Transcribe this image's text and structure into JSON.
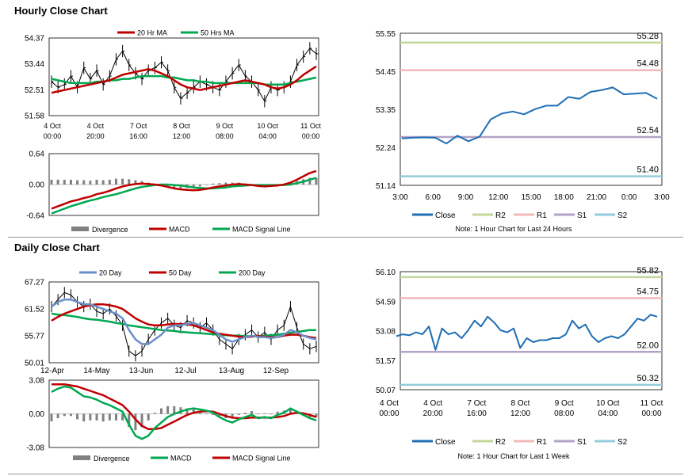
{
  "sections": {
    "hourly_title": "Hourly Close Chart",
    "daily_title": "Daily Close Chart"
  },
  "colors": {
    "ma20": "#c00000",
    "ma50": "#00a850",
    "price": "#000000",
    "day20": "#6a8fc8",
    "day50": "#c00000",
    "day200": "#00a850",
    "div": "#808080",
    "macd": "#c00000",
    "signal": "#00a850",
    "close": "#1f6eb4",
    "r2": "#c4d79b",
    "r1": "#f2b8b8",
    "s1": "#b3a2c7",
    "s2": "#92cddc"
  },
  "chart_data": [
    {
      "id": "hourly_price",
      "type": "line",
      "legend": [
        "20 Hr MA",
        "50 Hrs MA"
      ],
      "y_ticks": [
        "54.37",
        "53.44",
        "52.51",
        "51.58"
      ],
      "ylim": [
        51.58,
        54.37
      ],
      "x_ticks": [
        [
          "4 Oct",
          "00:00"
        ],
        [
          "4 Oct",
          "20:00"
        ],
        [
          "7 Oct",
          "16:00"
        ],
        [
          "8 Oct",
          "12:00"
        ],
        [
          "9 Oct",
          "08:00"
        ],
        [
          "10 Oct",
          "04:00"
        ],
        [
          "11 Oct",
          "00:00"
        ]
      ],
      "price": [
        52.8,
        52.6,
        52.7,
        53.0,
        52.6,
        53.3,
        52.9,
        53.2,
        52.7,
        53.0,
        53.6,
        53.9,
        53.4,
        53.1,
        52.9,
        53.2,
        53.3,
        53.5,
        53.2,
        52.6,
        52.2,
        52.4,
        52.6,
        52.8,
        52.7,
        52.6,
        52.5,
        52.8,
        53.1,
        53.4,
        53.0,
        52.8,
        52.5,
        52.1,
        52.6,
        52.5,
        52.6,
        52.8,
        53.4,
        53.7,
        54.0,
        53.8
      ],
      "ma20": [
        52.4,
        52.45,
        52.5,
        52.55,
        52.6,
        52.65,
        52.7,
        52.75,
        52.8,
        52.85,
        52.95,
        53.05,
        53.1,
        53.15,
        53.2,
        53.25,
        53.2,
        53.1,
        53.0,
        52.85,
        52.7,
        52.6,
        52.55,
        52.5,
        52.55,
        52.6,
        52.65,
        52.7,
        52.75,
        52.8,
        52.85,
        52.8,
        52.75,
        52.7,
        52.6,
        52.55,
        52.6,
        52.7,
        52.85,
        53.05,
        53.2,
        53.35
      ],
      "ma50": [
        52.9,
        52.85,
        52.8,
        52.75,
        52.75,
        52.75,
        52.75,
        52.8,
        52.8,
        52.85,
        52.85,
        52.9,
        52.9,
        52.95,
        53.0,
        53.0,
        53.0,
        53.0,
        52.95,
        52.95,
        52.9,
        52.85,
        52.85,
        52.8,
        52.8,
        52.75,
        52.75,
        52.75,
        52.75,
        52.75,
        52.75,
        52.75,
        52.75,
        52.7,
        52.7,
        52.7,
        52.7,
        52.75,
        52.8,
        52.85,
        52.9,
        52.95
      ]
    },
    {
      "id": "hourly_macd",
      "type": "line",
      "legend": [
        "Divergence",
        "MACD",
        "MACD Signal Line"
      ],
      "y_ticks": [
        "0.64",
        "0.00",
        "-0.64"
      ],
      "ylim": [
        -0.64,
        0.64
      ],
      "macd": [
        -0.5,
        -0.45,
        -0.4,
        -0.35,
        -0.32,
        -0.28,
        -0.25,
        -0.2,
        -0.17,
        -0.13,
        -0.08,
        -0.04,
        -0.01,
        0.01,
        0.02,
        0.01,
        0.0,
        -0.02,
        -0.05,
        -0.08,
        -0.1,
        -0.11,
        -0.12,
        -0.11,
        -0.09,
        -0.06,
        -0.04,
        -0.02,
        0.0,
        0.01,
        0.0,
        -0.01,
        -0.03,
        -0.04,
        -0.03,
        -0.02,
        0.0,
        0.04,
        0.1,
        0.17,
        0.24,
        0.28
      ],
      "signal": [
        -0.6,
        -0.55,
        -0.5,
        -0.45,
        -0.41,
        -0.37,
        -0.33,
        -0.3,
        -0.26,
        -0.23,
        -0.2,
        -0.16,
        -0.12,
        -0.08,
        -0.05,
        -0.03,
        -0.01,
        0.0,
        0.0,
        -0.01,
        -0.02,
        -0.04,
        -0.06,
        -0.07,
        -0.08,
        -0.08,
        -0.07,
        -0.06,
        -0.04,
        -0.03,
        -0.02,
        -0.01,
        -0.01,
        -0.01,
        -0.01,
        -0.01,
        -0.01,
        0.0,
        0.03,
        0.06,
        0.1,
        0.14
      ],
      "divergence": [
        0.1,
        0.1,
        0.1,
        0.1,
        0.09,
        0.09,
        0.08,
        0.1,
        0.09,
        0.1,
        0.12,
        0.12,
        0.11,
        0.09,
        0.07,
        0.04,
        0.01,
        -0.02,
        -0.05,
        -0.07,
        -0.08,
        -0.07,
        -0.06,
        -0.04,
        -0.01,
        0.02,
        0.03,
        0.04,
        0.04,
        0.04,
        0.02,
        0.0,
        -0.02,
        -0.03,
        -0.02,
        -0.01,
        0.01,
        0.04,
        0.07,
        0.11,
        0.14,
        0.14
      ]
    },
    {
      "id": "hourly_levels",
      "type": "line",
      "ylim": [
        51.14,
        55.55
      ],
      "y_ticks": [
        "55.55",
        "54.45",
        "53.35",
        "52.24",
        "51.14"
      ],
      "x_ticks": [
        "3:00",
        "6:00",
        "9:00",
        "12:00",
        "15:00",
        "18:00",
        "21:00",
        "0:00",
        "3:00"
      ],
      "levels": {
        "R2": 55.28,
        "R1": 54.48,
        "S1": 52.54,
        "S2": 51.4
      },
      "level_labels": {
        "R2": "55.28",
        "R1": "54.48",
        "S1": "52.54",
        "S2": "51.40"
      },
      "close": [
        52.5,
        52.52,
        52.53,
        52.52,
        52.35,
        52.58,
        52.42,
        52.55,
        53.05,
        53.22,
        53.28,
        53.2,
        53.35,
        53.45,
        53.45,
        53.7,
        53.65,
        53.85,
        53.9,
        53.98,
        53.78,
        53.8,
        53.82,
        53.65
      ],
      "legend": [
        "Close",
        "R2",
        "R1",
        "S1",
        "S2"
      ],
      "note": "Note: 1 Hour Chart for Last 24 Hours"
    },
    {
      "id": "daily_price",
      "type": "line",
      "legend": [
        "20 Day",
        "50 Day",
        "200 Day"
      ],
      "y_ticks": [
        "67.27",
        "61.52",
        "55.77",
        "50.01"
      ],
      "ylim": [
        50.01,
        67.27
      ],
      "x_ticks": [
        "12-Apr",
        "14-May",
        "13-Jun",
        "12-Jul",
        "13-Aug",
        "12-Sep"
      ],
      "price": [
        62.0,
        63.5,
        65.0,
        64.5,
        63.0,
        62.0,
        62.5,
        61.0,
        60.5,
        61.5,
        60.0,
        58.0,
        52.5,
        51.5,
        52.5,
        55.0,
        57.0,
        58.5,
        59.5,
        58.0,
        57.5,
        59.0,
        58.5,
        57.5,
        58.5,
        57.0,
        55.0,
        54.0,
        53.0,
        55.0,
        56.0,
        57.0,
        55.5,
        56.5,
        55.0,
        57.0,
        58.0,
        62.0,
        57.5,
        54.0,
        53.0,
        53.5
      ],
      "day20": [
        62.0,
        63.0,
        63.5,
        63.5,
        63.0,
        62.5,
        62.5,
        62.0,
        61.5,
        61.0,
        60.5,
        59.5,
        57.0,
        55.0,
        54.0,
        54.0,
        55.0,
        56.0,
        57.5,
        58.0,
        58.0,
        58.3,
        58.5,
        58.0,
        57.5,
        57.0,
        56.0,
        55.0,
        54.5,
        55.0,
        55.5,
        55.8,
        55.5,
        55.5,
        55.3,
        55.5,
        56.0,
        57.0,
        56.5,
        55.8,
        55.3,
        55.0
      ],
      "day50": [
        59.0,
        59.8,
        60.5,
        61.0,
        61.5,
        62.0,
        62.3,
        62.5,
        62.5,
        62.3,
        62.0,
        61.5,
        60.5,
        59.5,
        58.8,
        58.2,
        58.0,
        58.0,
        58.2,
        58.3,
        58.3,
        58.2,
        58.0,
        57.5,
        57.0,
        56.5,
        56.2,
        56.0,
        55.8,
        55.6,
        55.5,
        55.6,
        55.7,
        55.6,
        55.5,
        55.5,
        55.8,
        56.0,
        56.0,
        55.8,
        55.5,
        55.3
      ],
      "day200": [
        60.5,
        60.3,
        60.2,
        60.0,
        59.8,
        59.5,
        59.3,
        59.2,
        59.0,
        58.8,
        58.5,
        58.3,
        58.0,
        57.8,
        57.6,
        57.4,
        57.2,
        57.0,
        56.9,
        56.8,
        56.6,
        56.5,
        56.4,
        56.3,
        56.2,
        56.1,
        56.0,
        55.9,
        55.8,
        55.8,
        55.7,
        55.7,
        55.7,
        55.8,
        55.9,
        56.0,
        56.2,
        56.4,
        56.6,
        56.8,
        57.0,
        57.0
      ]
    },
    {
      "id": "daily_macd",
      "type": "line",
      "legend": [
        "Divergence",
        "MACD",
        "MACD Signal Line"
      ],
      "y_ticks": [
        "3.08",
        "0.00",
        "-3.08"
      ],
      "ylim": [
        -3.08,
        3.08
      ],
      "macd": [
        2.0,
        2.3,
        2.5,
        2.4,
        2.0,
        1.6,
        1.5,
        1.3,
        1.0,
        0.8,
        0.5,
        0.2,
        -1.0,
        -2.0,
        -2.3,
        -2.0,
        -1.3,
        -0.8,
        -0.3,
        0.0,
        0.2,
        0.4,
        0.5,
        0.4,
        0.3,
        0.1,
        -0.3,
        -0.6,
        -0.8,
        -0.5,
        -0.3,
        -0.1,
        -0.4,
        -0.3,
        -0.4,
        -0.1,
        0.1,
        0.5,
        0.2,
        -0.1,
        -0.4,
        -0.6
      ],
      "signal": [
        2.7,
        2.7,
        2.7,
        2.6,
        2.5,
        2.3,
        2.1,
        1.9,
        1.7,
        1.4,
        1.1,
        0.8,
        0.2,
        -0.5,
        -1.1,
        -1.4,
        -1.4,
        -1.3,
        -1.0,
        -0.7,
        -0.4,
        -0.1,
        0.1,
        0.2,
        0.25,
        0.2,
        0.0,
        -0.2,
        -0.35,
        -0.4,
        -0.4,
        -0.35,
        -0.35,
        -0.35,
        -0.35,
        -0.3,
        -0.2,
        0.0,
        0.1,
        0.05,
        -0.1,
        -0.3
      ],
      "divergence": [
        -0.7,
        -0.4,
        -0.2,
        -0.2,
        -0.5,
        -0.7,
        -0.6,
        -0.6,
        -0.7,
        -0.6,
        -0.6,
        -0.6,
        -1.2,
        -1.5,
        -1.2,
        -0.6,
        0.1,
        0.5,
        0.7,
        0.7,
        0.6,
        0.5,
        0.4,
        0.2,
        0.05,
        -0.1,
        -0.3,
        -0.4,
        -0.45,
        -0.1,
        0.1,
        0.25,
        -0.05,
        0.05,
        -0.05,
        0.2,
        0.3,
        0.5,
        0.1,
        -0.15,
        -0.3,
        -0.3
      ]
    },
    {
      "id": "daily_levels",
      "type": "line",
      "ylim": [
        50.07,
        56.1
      ],
      "y_ticks": [
        "56.10",
        "54.59",
        "53.08",
        "51.57",
        "50.07"
      ],
      "x_ticks": [
        [
          "4 Oct",
          "00:00"
        ],
        [
          "4 Oct",
          "20:00"
        ],
        [
          "7 Oct",
          "16:00"
        ],
        [
          "8 Oct",
          "12:00"
        ],
        [
          "9 Oct",
          "08:00"
        ],
        [
          "10 Oct",
          "04:00"
        ],
        [
          "11 Oct",
          "00:00"
        ]
      ],
      "levels": {
        "R2": 55.82,
        "R1": 54.75,
        "S1": 52.0,
        "S2": 50.32
      },
      "level_labels": {
        "R2": "55.82",
        "R1": "54.75",
        "S1": "52.00",
        "S2": "50.32"
      },
      "close": [
        52.8,
        52.9,
        52.85,
        53.0,
        52.9,
        53.3,
        52.1,
        53.2,
        52.9,
        53.0,
        52.7,
        53.1,
        53.6,
        53.3,
        53.8,
        53.5,
        53.1,
        53.0,
        53.2,
        52.2,
        52.7,
        52.5,
        52.6,
        52.6,
        52.7,
        52.7,
        52.9,
        53.6,
        53.2,
        53.4,
        52.8,
        52.5,
        52.7,
        52.8,
        52.7,
        52.9,
        53.3,
        53.7,
        53.6,
        53.9,
        53.8
      ],
      "legend": [
        "Close",
        "R2",
        "R1",
        "S1",
        "S2"
      ],
      "note": "Note: 1 Hour Chart for Last 1 Week"
    }
  ]
}
